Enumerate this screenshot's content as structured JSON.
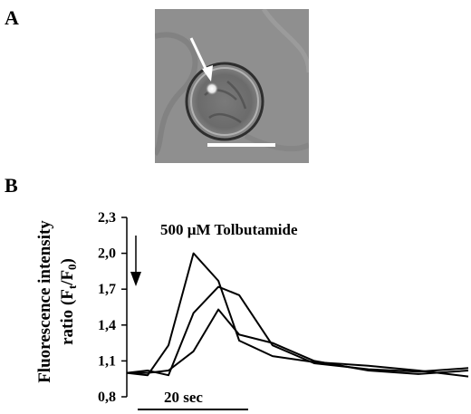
{
  "panels": {
    "a_label": "A",
    "b_label": "B"
  },
  "micrograph": {
    "background": "#8f8f8f",
    "arrow_color": "#ffffff",
    "scale_bar_color": "#ffffff"
  },
  "chart_data": {
    "type": "line",
    "title": "",
    "ylabel_main": "Fluorescence intensity",
    "ylabel_sub_prefix": "ratio (F",
    "ylabel_sub_t": "t",
    "ylabel_sub_mid": "/F",
    "ylabel_sub_0": "0",
    "ylabel_sub_suffix": ")",
    "ylim": [
      0.8,
      2.3
    ],
    "yticks": [
      "0,8",
      "1,1",
      "1,4",
      "1,7",
      "2,0",
      "2,3"
    ],
    "ytick_values": [
      0.8,
      1.1,
      1.4,
      1.7,
      2.0,
      2.3
    ],
    "annotation": "500 µM Tolbutamide",
    "time_scale_label": "20 sec",
    "line_color": "#000000",
    "series": [
      {
        "x": [
          0,
          5,
          10,
          16,
          22,
          27,
          35,
          45,
          58,
          70,
          82
        ],
        "y": [
          1.0,
          0.98,
          1.23,
          2.0,
          1.77,
          1.27,
          1.14,
          1.09,
          1.06,
          1.02,
          0.97
        ]
      },
      {
        "x": [
          0,
          5,
          10,
          16,
          22,
          27,
          35,
          45,
          58,
          70,
          82
        ],
        "y": [
          1.0,
          1.02,
          0.98,
          1.5,
          1.72,
          1.65,
          1.23,
          1.08,
          1.03,
          1.01,
          1.04
        ]
      },
      {
        "x": [
          0,
          5,
          10,
          16,
          22,
          27,
          35,
          45,
          58,
          70,
          82
        ],
        "y": [
          1.0,
          1.0,
          1.02,
          1.18,
          1.53,
          1.32,
          1.25,
          1.1,
          1.02,
          0.99,
          1.02
        ]
      }
    ]
  }
}
